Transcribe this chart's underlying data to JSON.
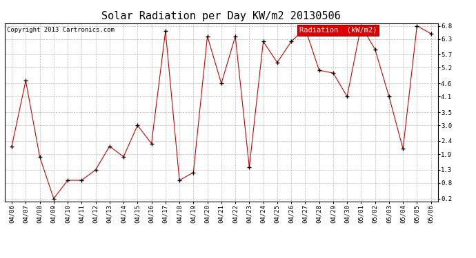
{
  "title": "Solar Radiation per Day KW/m2 20130506",
  "copyright": "Copyright 2013 Cartronics.com",
  "legend_label": "Radiation  (kW/m2)",
  "dates": [
    "04/06",
    "04/07",
    "04/08",
    "04/09",
    "04/10",
    "04/11",
    "04/12",
    "04/13",
    "04/14",
    "04/15",
    "04/16",
    "04/17",
    "04/18",
    "04/19",
    "04/20",
    "04/21",
    "04/22",
    "04/23",
    "04/24",
    "04/25",
    "04/26",
    "04/27",
    "04/28",
    "04/29",
    "04/30",
    "05/01",
    "05/02",
    "05/03",
    "05/04",
    "05/05",
    "05/06"
  ],
  "values": [
    2.2,
    4.7,
    1.8,
    0.2,
    0.9,
    0.9,
    1.3,
    2.2,
    1.8,
    3.0,
    2.3,
    6.6,
    0.9,
    1.2,
    6.4,
    4.6,
    6.4,
    1.4,
    6.2,
    5.4,
    6.2,
    6.7,
    5.1,
    5.0,
    4.1,
    6.8,
    5.9,
    4.1,
    2.1,
    6.8,
    6.5
  ],
  "ylim_min": 0.2,
  "ylim_max": 6.8,
  "yticks": [
    0.2,
    0.8,
    1.3,
    1.9,
    2.4,
    3.0,
    3.5,
    4.1,
    4.6,
    5.2,
    5.7,
    6.3,
    6.8
  ],
  "line_color": "#cc0000",
  "marker": "+",
  "marker_color": "#000000",
  "bg_color": "#ffffff",
  "grid_color": "#bbbbbb",
  "title_fontsize": 11,
  "tick_fontsize": 6.5,
  "copyright_fontsize": 6.5,
  "legend_bg": "#dd0000",
  "legend_fg": "#ffffff",
  "legend_fontsize": 7.5
}
